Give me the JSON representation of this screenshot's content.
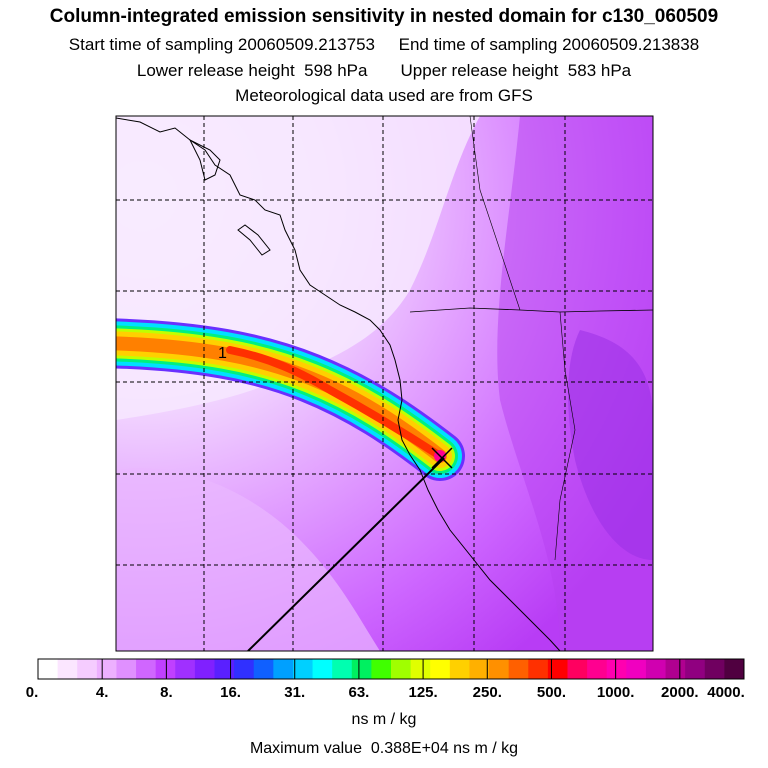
{
  "header": {
    "title": "Column-integrated emission sensitivity in nested domain for c130_060509",
    "line1": "Start time of sampling 20060509.213753     End time of sampling 20060509.213838",
    "line2": "Lower release height  598 hPa       Upper release height  583 hPa",
    "line3": "Meteorological data used are from GFS"
  },
  "map": {
    "label": "1",
    "colors": {
      "plume_center": "#ff3000",
      "plume_mid": "#ffa000",
      "plume_outer": "#00e0ff",
      "background_purple": "#c040ff",
      "background_light": "#f0d0ff"
    }
  },
  "colorbar": {
    "ticks": [
      "0.",
      "4.",
      "8.",
      "16.",
      "31.",
      "63.",
      "125.",
      "250.",
      "500.",
      "1000.",
      "2000.",
      "4000."
    ],
    "units": "ns m / kg",
    "colors": [
      "#ffffff",
      "#fbe6ff",
      "#f5ccff",
      "#edb0ff",
      "#e090ff",
      "#d066ff",
      "#c040ff",
      "#a030ff",
      "#8020ff",
      "#5a20ff",
      "#3030ff",
      "#1060ff",
      "#00a0ff",
      "#00d0ff",
      "#00ffff",
      "#00ffb0",
      "#00f060",
      "#40ff00",
      "#a0ff00",
      "#e0ff00",
      "#ffff00",
      "#ffd000",
      "#ffb000",
      "#ff9000",
      "#ff6000",
      "#ff3000",
      "#ff0000",
      "#ff0060",
      "#ff0090",
      "#ff00b0",
      "#f000c0",
      "#d000b0",
      "#b00090",
      "#900080",
      "#700060",
      "#500040"
    ]
  },
  "footer": {
    "maximum": "Maximum value  0.388E+04 ns m / kg"
  }
}
